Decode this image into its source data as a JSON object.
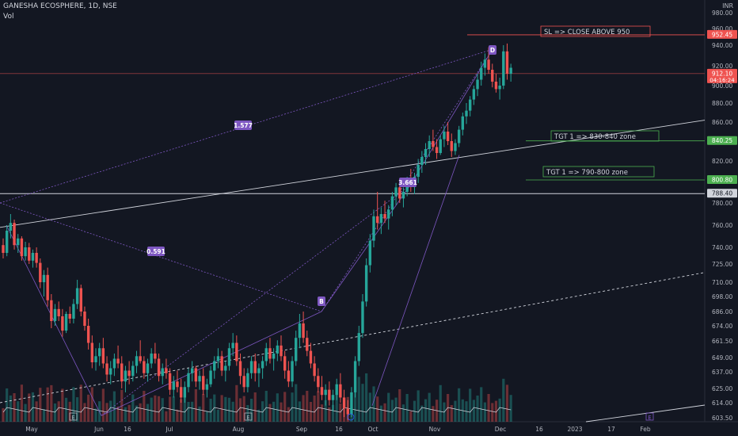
{
  "header": {
    "symbol": "GANESHA ECOSPHERE, 1D, NSE",
    "volume_label": "Vol",
    "currency": "INR"
  },
  "colors": {
    "up": "#26a69a",
    "down": "#ef5350",
    "pattern": "#7e57c2",
    "background": "#131722"
  },
  "chart_data": {
    "type": "candlestick",
    "price_axis": {
      "ticks": [
        "980.00",
        "960.00",
        "940.00",
        "920.00",
        "900.00",
        "880.00",
        "860.00",
        "840.00",
        "820.00",
        "800.00",
        "780.00",
        "760.00",
        "740.00",
        "725.00",
        "710.00",
        "698.00",
        "686.00",
        "674.00",
        "661.50",
        "649.00",
        "637.00",
        "625.00",
        "614.00",
        "603.50"
      ],
      "ylim": [
        600,
        985
      ]
    },
    "time_axis": [
      "May",
      "Jun",
      "16",
      "Jul",
      "Aug",
      "Sep",
      "16",
      "Oct",
      "Nov",
      "Dec",
      "16",
      "2023",
      "17",
      "Feb"
    ],
    "price_labels": [
      {
        "text": "952.45",
        "value": 952.45,
        "color": "#ef5350"
      },
      {
        "text": "912.10",
        "value": 912.1,
        "color": "#ef5350",
        "sub": "04:16:24"
      },
      {
        "text": "840.25",
        "value": 840.25,
        "color": "#4caf50"
      },
      {
        "text": "800.80",
        "value": 800.8,
        "color": "#4caf50"
      },
      {
        "text": "788.40",
        "value": 788.4,
        "color": "#d1d4dc"
      }
    ],
    "annotations": [
      {
        "text": "SL => CLOSE ABOVE 950",
        "color": "#ef5350"
      },
      {
        "text": "TGT 1 => 830-840 zone",
        "color": "#4caf50"
      },
      {
        "text": "TGT 1 => 790-800 zone",
        "color": "#4caf50"
      }
    ],
    "pattern_points": [
      "B",
      "D"
    ],
    "pattern_ratios": [
      "1.577",
      "3.661",
      "0.591"
    ],
    "event_markers": [
      "E",
      "E",
      "E"
    ],
    "candles": [
      [
        742,
        748,
        730,
        735
      ],
      [
        735,
        760,
        732,
        755
      ],
      [
        755,
        770,
        748,
        762
      ],
      [
        762,
        765,
        738,
        742
      ],
      [
        742,
        752,
        735,
        748
      ],
      [
        748,
        750,
        728,
        732
      ],
      [
        732,
        745,
        728,
        740
      ],
      [
        740,
        744,
        725,
        728
      ],
      [
        728,
        738,
        722,
        735
      ],
      [
        735,
        740,
        722,
        726
      ],
      [
        726,
        730,
        705,
        710
      ],
      [
        710,
        720,
        698,
        716
      ],
      [
        716,
        722,
        690,
        695
      ],
      [
        695,
        700,
        672,
        678
      ],
      [
        678,
        692,
        674,
        688
      ],
      [
        688,
        694,
        678,
        682
      ],
      [
        682,
        688,
        665,
        670
      ],
      [
        670,
        686,
        668,
        684
      ],
      [
        684,
        690,
        676,
        680
      ],
      [
        680,
        696,
        676,
        692
      ],
      [
        692,
        712,
        688,
        705
      ],
      [
        705,
        708,
        682,
        686
      ],
      [
        686,
        690,
        670,
        674
      ],
      [
        674,
        680,
        655,
        660
      ],
      [
        660,
        666,
        640,
        645
      ],
      [
        645,
        656,
        638,
        650
      ],
      [
        650,
        660,
        642,
        656
      ],
      [
        656,
        664,
        640,
        644
      ],
      [
        644,
        650,
        630,
        635
      ],
      [
        635,
        646,
        628,
        640
      ],
      [
        640,
        652,
        634,
        648
      ],
      [
        648,
        658,
        640,
        644
      ],
      [
        644,
        650,
        625,
        630
      ],
      [
        630,
        642,
        622,
        638
      ],
      [
        638,
        646,
        628,
        634
      ],
      [
        634,
        646,
        630,
        642
      ],
      [
        642,
        654,
        636,
        650
      ],
      [
        650,
        662,
        644,
        646
      ],
      [
        646,
        650,
        632,
        636
      ],
      [
        636,
        648,
        630,
        644
      ],
      [
        644,
        656,
        640,
        652
      ],
      [
        652,
        660,
        644,
        648
      ],
      [
        648,
        652,
        630,
        634
      ],
      [
        634,
        644,
        628,
        640
      ],
      [
        640,
        648,
        632,
        636
      ],
      [
        636,
        640,
        620,
        624
      ],
      [
        624,
        634,
        618,
        630
      ],
      [
        630,
        638,
        622,
        626
      ],
      [
        626,
        632,
        614,
        618
      ],
      [
        618,
        630,
        614,
        626
      ],
      [
        626,
        640,
        622,
        636
      ],
      [
        636,
        646,
        630,
        640
      ],
      [
        640,
        642,
        626,
        630
      ],
      [
        630,
        638,
        624,
        634
      ],
      [
        634,
        640,
        620,
        624
      ],
      [
        624,
        632,
        618,
        628
      ],
      [
        628,
        642,
        626,
        638
      ],
      [
        638,
        650,
        632,
        646
      ],
      [
        646,
        656,
        640,
        650
      ],
      [
        650,
        654,
        634,
        638
      ],
      [
        638,
        646,
        630,
        642
      ],
      [
        642,
        660,
        638,
        656
      ],
      [
        656,
        668,
        650,
        660
      ],
      [
        660,
        666,
        642,
        646
      ],
      [
        646,
        652,
        628,
        634
      ],
      [
        634,
        640,
        622,
        626
      ],
      [
        626,
        640,
        622,
        636
      ],
      [
        636,
        650,
        632,
        646
      ],
      [
        646,
        652,
        630,
        636
      ],
      [
        636,
        644,
        626,
        640
      ],
      [
        640,
        650,
        632,
        646
      ],
      [
        646,
        660,
        642,
        656
      ],
      [
        656,
        664,
        644,
        648
      ],
      [
        648,
        656,
        638,
        652
      ],
      [
        652,
        662,
        646,
        658
      ],
      [
        658,
        666,
        646,
        650
      ],
      [
        650,
        654,
        632,
        638
      ],
      [
        638,
        646,
        626,
        630
      ],
      [
        630,
        650,
        626,
        646
      ],
      [
        646,
        670,
        642,
        664
      ],
      [
        664,
        684,
        656,
        676
      ],
      [
        676,
        686,
        660,
        664
      ],
      [
        664,
        670,
        650,
        654
      ],
      [
        654,
        660,
        640,
        644
      ],
      [
        644,
        650,
        630,
        634
      ],
      [
        634,
        640,
        622,
        626
      ],
      [
        626,
        634,
        616,
        620
      ],
      [
        620,
        628,
        612,
        624
      ],
      [
        624,
        630,
        612,
        616
      ],
      [
        616,
        624,
        608,
        620
      ],
      [
        620,
        632,
        616,
        628
      ],
      [
        628,
        636,
        614,
        618
      ],
      [
        618,
        624,
        604,
        610
      ],
      [
        610,
        616,
        602,
        606
      ],
      [
        606,
        626,
        604,
        622
      ],
      [
        622,
        650,
        618,
        646
      ],
      [
        646,
        674,
        642,
        668
      ],
      [
        668,
        700,
        664,
        694
      ],
      [
        694,
        730,
        690,
        724
      ],
      [
        724,
        752,
        718,
        746
      ],
      [
        746,
        774,
        740,
        768
      ],
      [
        768,
        790,
        756,
        762
      ],
      [
        762,
        776,
        752,
        770
      ],
      [
        770,
        782,
        762,
        766
      ],
      [
        766,
        778,
        756,
        774
      ],
      [
        774,
        790,
        768,
        786
      ],
      [
        786,
        798,
        778,
        794
      ],
      [
        794,
        800,
        780,
        784
      ],
      [
        784,
        794,
        776,
        790
      ],
      [
        790,
        804,
        786,
        800
      ],
      [
        800,
        812,
        790,
        796
      ],
      [
        796,
        808,
        788,
        804
      ],
      [
        804,
        822,
        798,
        816
      ],
      [
        816,
        830,
        808,
        824
      ],
      [
        824,
        838,
        816,
        832
      ],
      [
        832,
        846,
        824,
        840
      ],
      [
        840,
        852,
        830,
        834
      ],
      [
        834,
        842,
        822,
        828
      ],
      [
        828,
        846,
        826,
        842
      ],
      [
        842,
        856,
        834,
        850
      ],
      [
        850,
        860,
        836,
        840
      ],
      [
        840,
        848,
        824,
        830
      ],
      [
        830,
        842,
        826,
        838
      ],
      [
        838,
        856,
        834,
        852
      ],
      [
        852,
        870,
        846,
        866
      ],
      [
        866,
        880,
        858,
        872
      ],
      [
        872,
        888,
        866,
        884
      ],
      [
        884,
        900,
        878,
        896
      ],
      [
        896,
        912,
        888,
        906
      ],
      [
        906,
        924,
        900,
        918
      ],
      [
        918,
        932,
        910,
        926
      ],
      [
        926,
        938,
        912,
        916
      ],
      [
        916,
        922,
        898,
        904
      ],
      [
        904,
        912,
        892,
        896
      ],
      [
        896,
        908,
        884,
        900
      ],
      [
        900,
        940,
        896,
        934
      ],
      [
        934,
        942,
        906,
        912
      ],
      [
        912,
        922,
        904,
        918
      ]
    ]
  }
}
